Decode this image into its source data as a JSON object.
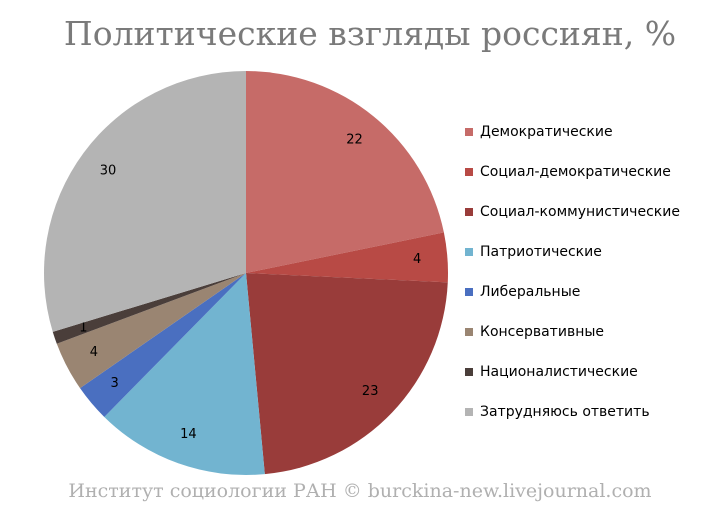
{
  "chart_data": {
    "type": "pie",
    "title": "Политические взгляды россиян, %",
    "source": "Институт социологии РАН © burckina-new.livejournal.com",
    "categories": [
      "Демократические",
      "Социал-демократические",
      "Социал-коммунистические",
      "Патриотические",
      "Либеральные",
      "Консервативные",
      "Националистические",
      "Затрудняюсь ответить"
    ],
    "values": [
      22,
      4,
      23,
      14,
      3,
      4,
      1,
      30
    ],
    "colors": [
      "#c66b68",
      "#b84a45",
      "#993c3a",
      "#72b4d0",
      "#4a6fc0",
      "#9a8572",
      "#4a3e3a",
      "#b4b4b4"
    ]
  }
}
